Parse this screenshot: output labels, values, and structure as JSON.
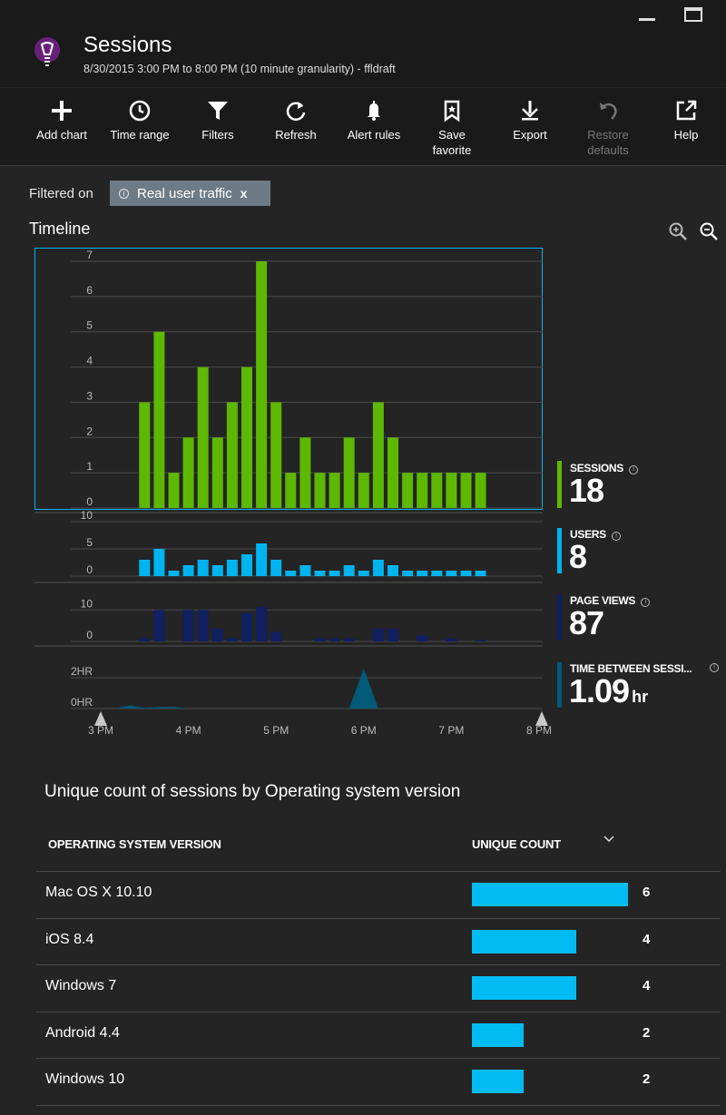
{
  "header": {
    "title": "Sessions",
    "subtitle": "8/30/2015 3:00 PM to 8:00 PM (10 minute granularity) - ffldraft"
  },
  "toolbar": [
    {
      "label": "Add chart",
      "icon": "plus-icon",
      "enabled": true
    },
    {
      "label": "Time range",
      "icon": "clock-icon",
      "enabled": true
    },
    {
      "label": "Filters",
      "icon": "funnel-icon",
      "enabled": true
    },
    {
      "label": "Refresh",
      "icon": "refresh-icon",
      "enabled": true
    },
    {
      "label": "Alert rules",
      "icon": "bell-icon",
      "enabled": true
    },
    {
      "label": "Save\nfavorite",
      "icon": "bookmark-icon",
      "enabled": true
    },
    {
      "label": "Export",
      "icon": "download-icon",
      "enabled": true
    },
    {
      "label": "Restore\ndefaults",
      "icon": "undo-icon",
      "enabled": false
    },
    {
      "label": "Help",
      "icon": "external-link-icon",
      "enabled": true
    }
  ],
  "filter": {
    "label": "Filtered on",
    "chip": "Real user traffic",
    "chip_close": "x"
  },
  "timeline": {
    "title": "Timeline"
  },
  "kpis": [
    {
      "label": "SESSIONS",
      "value": "18",
      "unit": "",
      "color": "#5cb800"
    },
    {
      "label": "USERS",
      "value": "8",
      "unit": "",
      "color": "#00b4f0"
    },
    {
      "label": "PAGE VIEWS",
      "value": "87",
      "unit": "",
      "color": "#102060"
    },
    {
      "label": "TIME BETWEEN SESSI...",
      "value": "1.09",
      "unit": "hr",
      "color": "#005a78"
    }
  ],
  "chart_data": [
    {
      "type": "bar",
      "name": "sessions",
      "x": [
        "15:30",
        "15:40",
        "15:50",
        "16:00",
        "16:10",
        "16:20",
        "16:30",
        "16:40",
        "16:50",
        "17:00",
        "17:10",
        "17:20",
        "17:30",
        "17:40",
        "17:50",
        "18:00",
        "18:10",
        "18:20",
        "18:30",
        "18:40",
        "18:50",
        "19:00",
        "19:10",
        "19:20"
      ],
      "values": [
        3,
        5,
        1,
        2,
        4,
        2,
        3,
        4,
        7,
        3,
        1,
        2,
        1,
        1,
        2,
        1,
        3,
        2,
        1,
        1,
        1,
        1,
        1,
        1
      ],
      "ylim": [
        0,
        7
      ],
      "yticks": [
        "0",
        "1",
        "2",
        "3",
        "4",
        "5",
        "6",
        "7"
      ],
      "color": "#5cb800"
    },
    {
      "type": "bar",
      "name": "users",
      "x": [
        "15:30",
        "15:40",
        "15:50",
        "16:00",
        "16:10",
        "16:20",
        "16:30",
        "16:40",
        "16:50",
        "17:00",
        "17:10",
        "17:20",
        "17:30",
        "17:40",
        "17:50",
        "18:00",
        "18:10",
        "18:20",
        "18:30",
        "18:40",
        "18:50",
        "19:00",
        "19:10",
        "19:20"
      ],
      "values": [
        3,
        5,
        1,
        2,
        3,
        2,
        3,
        4,
        6,
        3,
        1,
        2,
        1,
        1,
        2,
        1,
        3,
        2,
        1,
        1,
        1,
        1,
        1,
        1
      ],
      "ylim": [
        0,
        10
      ],
      "yticks": [
        "0",
        "5",
        "10"
      ],
      "color": "#00b4f0"
    },
    {
      "type": "bar",
      "name": "page views",
      "x": [
        "15:30",
        "15:40",
        "15:50",
        "16:00",
        "16:10",
        "16:20",
        "16:30",
        "16:40",
        "16:50",
        "17:00",
        "17:10",
        "17:20",
        "17:30",
        "17:40",
        "17:50",
        "18:00",
        "18:10",
        "18:20",
        "18:30",
        "18:40",
        "18:50",
        "19:00",
        "19:10",
        "19:20"
      ],
      "values": [
        1,
        10,
        0,
        10,
        10,
        4,
        1,
        9,
        11,
        3,
        0,
        0,
        1,
        1,
        1,
        0,
        4,
        4,
        0,
        2,
        0,
        1,
        0,
        0.5
      ],
      "ylim": [
        0,
        15
      ],
      "yticks": [
        "0",
        "10"
      ],
      "color": "#102060"
    },
    {
      "type": "area",
      "name": "time between sessions",
      "x": [
        "15:00",
        "15:10",
        "15:20",
        "15:30",
        "15:40",
        "15:50",
        "16:00",
        "16:10",
        "17:50",
        "18:00",
        "18:10",
        "18:20",
        "20:00"
      ],
      "values": [
        0,
        0,
        0.2,
        0.05,
        0.1,
        0.1,
        0,
        0,
        0,
        2.6,
        0,
        0,
        0
      ],
      "ylim": [
        0,
        3
      ],
      "yticks": [
        "0HR",
        "2HR"
      ],
      "color": "#005a78"
    }
  ],
  "x_axis_ticks": [
    "3 PM",
    "4 PM",
    "5 PM",
    "6 PM",
    "7 PM",
    "8 PM"
  ],
  "os_table": {
    "title": "Unique count of sessions by Operating system version",
    "col_os": "OPERATING SYSTEM VERSION",
    "col_count": "UNIQUE COUNT",
    "rows": [
      {
        "name": "Mac OS X 10.10",
        "count": 6
      },
      {
        "name": "iOS 8.4",
        "count": 4
      },
      {
        "name": "Windows 7",
        "count": 4
      },
      {
        "name": "Android 4.4",
        "count": 2
      },
      {
        "name": "Windows 10",
        "count": 2
      }
    ],
    "max": 6
  }
}
